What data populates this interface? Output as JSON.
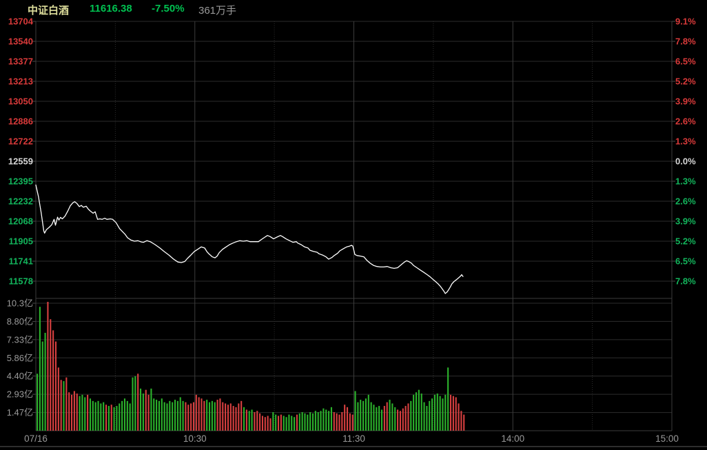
{
  "header": {
    "title": "中证白酒",
    "last": "11616.38",
    "change_pct": "-7.50%",
    "volume": "361万手"
  },
  "colors": {
    "up": "#d93a3a",
    "down": "#13b55c",
    "flat": "#d8d8d8",
    "bar_up": "#d84040",
    "bar_down": "#2cb32c",
    "line": "#ffffff",
    "axis_gray": "#9a9a9a",
    "title": "#dede9c",
    "value_green": "#00c050",
    "grid_h": "#2d2d2d",
    "grid_v_solid": "#3c3c3c",
    "grid_v_dotted": "#2e2e2e",
    "tick": "#4a4a4a",
    "bg": "#000000"
  },
  "chart_data": {
    "type": "line",
    "subtype": "intraday-price-with-volume-bars",
    "title": "中证白酒",
    "prev_close": 12559,
    "last_price": 11616.38,
    "change_pct": -7.5,
    "session_minutes": 240,
    "price_axis_top": 13704,
    "price_axis_bottom": 11578,
    "left_price_labels": [
      "13704",
      "13540",
      "13377",
      "13213",
      "13050",
      "12886",
      "12722",
      "12559",
      "12395",
      "12232",
      "12068",
      "11905",
      "11741",
      "11578"
    ],
    "left_price_classes": [
      "up",
      "up",
      "up",
      "up",
      "up",
      "up",
      "up",
      "flat",
      "down",
      "down",
      "down",
      "down",
      "down",
      "down"
    ],
    "right_pct_labels": [
      "9.1%",
      "7.8%",
      "6.5%",
      "5.2%",
      "3.9%",
      "2.6%",
      "1.3%",
      "0.0%",
      "1.3%",
      "2.6%",
      "3.9%",
      "5.2%",
      "6.5%",
      "7.8%"
    ],
    "volume_axis_labels": [
      "10.3亿",
      "8.80亿",
      "7.33亿",
      "5.86亿",
      "4.40亿",
      "2.93亿",
      "1.47亿"
    ],
    "volume_axis_max": 10.29,
    "x_ticks": [
      {
        "label": "07/16",
        "pos": 0.0
      },
      {
        "label": "10:30",
        "pos": 0.25
      },
      {
        "label": "11:30",
        "pos": 0.5
      },
      {
        "label": "14:00",
        "pos": 0.75
      },
      {
        "label": "15:00",
        "pos": 1.0
      }
    ],
    "v_gridlines_solid": [
      0.25,
      0.5,
      0.75
    ],
    "v_gridlines_dotted": [
      0.125,
      0.375,
      0.625,
      0.875
    ],
    "price_points": [
      [
        0,
        12365
      ],
      [
        1,
        12270
      ],
      [
        2,
        12140
      ],
      [
        3,
        11990
      ],
      [
        3.3,
        11971
      ],
      [
        4,
        12000
      ],
      [
        5,
        12018
      ],
      [
        6,
        12040
      ],
      [
        6.9,
        12084
      ],
      [
        7.4,
        12036
      ],
      [
        8.2,
        12102
      ],
      [
        8.7,
        12078
      ],
      [
        9.3,
        12100
      ],
      [
        10,
        12088
      ],
      [
        11,
        12110
      ],
      [
        12,
        12150
      ],
      [
        13,
        12195
      ],
      [
        14,
        12220
      ],
      [
        14.7,
        12228
      ],
      [
        15.5,
        12214
      ],
      [
        16.4,
        12188
      ],
      [
        17.2,
        12198
      ],
      [
        17.9,
        12183
      ],
      [
        19,
        12191
      ],
      [
        19.8,
        12168
      ],
      [
        20.5,
        12153
      ],
      [
        21.6,
        12134
      ],
      [
        22.4,
        12146
      ],
      [
        23.3,
        12084
      ],
      [
        24.2,
        12088
      ],
      [
        25,
        12084
      ],
      [
        26,
        12093
      ],
      [
        26.8,
        12084
      ],
      [
        28.1,
        12088
      ],
      [
        29,
        12084
      ],
      [
        30.3,
        12056
      ],
      [
        31.6,
        12008
      ],
      [
        32.4,
        11990
      ],
      [
        33.7,
        11961
      ],
      [
        34.6,
        11933
      ],
      [
        35.9,
        11914
      ],
      [
        37.2,
        11905
      ],
      [
        38.5,
        11909
      ],
      [
        39.8,
        11899
      ],
      [
        40.6,
        11896
      ],
      [
        41.9,
        11909
      ],
      [
        43.2,
        11901
      ],
      [
        45,
        11877
      ],
      [
        46.8,
        11849
      ],
      [
        48.4,
        11821
      ],
      [
        50.2,
        11792
      ],
      [
        52,
        11758
      ],
      [
        53.6,
        11735
      ],
      [
        54.9,
        11730
      ],
      [
        56.2,
        11739
      ],
      [
        57.2,
        11764
      ],
      [
        58.5,
        11792
      ],
      [
        59.8,
        11821
      ],
      [
        61.1,
        11839
      ],
      [
        62.4,
        11858
      ],
      [
        63.7,
        11849
      ],
      [
        64.5,
        11821
      ],
      [
        65.3,
        11802
      ],
      [
        66.6,
        11777
      ],
      [
        67.6,
        11769
      ],
      [
        68.4,
        11783
      ],
      [
        69.2,
        11811
      ],
      [
        70.5,
        11839
      ],
      [
        71.8,
        11858
      ],
      [
        73.1,
        11877
      ],
      [
        74.4,
        11890
      ],
      [
        75.7,
        11901
      ],
      [
        77,
        11909
      ],
      [
        78.3,
        11905
      ],
      [
        79.6,
        11909
      ],
      [
        80.9,
        11901
      ],
      [
        82.7,
        11901
      ],
      [
        84,
        11901
      ],
      [
        84.8,
        11914
      ],
      [
        86.1,
        11933
      ],
      [
        87.4,
        11952
      ],
      [
        88.4,
        11943
      ],
      [
        89.7,
        11924
      ],
      [
        91,
        11939
      ],
      [
        92.3,
        11952
      ],
      [
        93.1,
        11943
      ],
      [
        94.4,
        11924
      ],
      [
        95.7,
        11910
      ],
      [
        97,
        11896
      ],
      [
        98.3,
        11901
      ],
      [
        98.8,
        11890
      ],
      [
        100.1,
        11877
      ],
      [
        101.4,
        11858
      ],
      [
        102.7,
        11849
      ],
      [
        103.5,
        11830
      ],
      [
        104.8,
        11821
      ],
      [
        106.1,
        11815
      ],
      [
        106.9,
        11802
      ],
      [
        108.2,
        11792
      ],
      [
        109.5,
        11777
      ],
      [
        110.5,
        11758
      ],
      [
        111.8,
        11773
      ],
      [
        112.6,
        11788
      ],
      [
        113.9,
        11807
      ],
      [
        114.7,
        11826
      ],
      [
        115.7,
        11839
      ],
      [
        116.5,
        11849
      ],
      [
        117.3,
        11858
      ],
      [
        118.3,
        11864
      ],
      [
        119.1,
        11871
      ],
      [
        119.6,
        11865
      ],
      [
        120,
        11831
      ],
      [
        120.4,
        11796
      ],
      [
        121.2,
        11788
      ],
      [
        122.5,
        11783
      ],
      [
        123.8,
        11777
      ],
      [
        124.3,
        11764
      ],
      [
        125.1,
        11745
      ],
      [
        126.1,
        11726
      ],
      [
        127.4,
        11707
      ],
      [
        128.7,
        11698
      ],
      [
        130,
        11694
      ],
      [
        131.3,
        11694
      ],
      [
        132.6,
        11698
      ],
      [
        133.9,
        11688
      ],
      [
        135.2,
        11683
      ],
      [
        136.5,
        11688
      ],
      [
        137.3,
        11702
      ],
      [
        138.1,
        11717
      ],
      [
        139.1,
        11735
      ],
      [
        139.9,
        11745
      ],
      [
        140.7,
        11739
      ],
      [
        141.7,
        11726
      ],
      [
        142.5,
        11707
      ],
      [
        143.8,
        11688
      ],
      [
        145.1,
        11669
      ],
      [
        146.4,
        11650
      ],
      [
        147.7,
        11631
      ],
      [
        148.8,
        11613
      ],
      [
        149.8,
        11594
      ],
      [
        150.8,
        11575
      ],
      [
        151.8,
        11556
      ],
      [
        152.6,
        11537
      ],
      [
        153.4,
        11513
      ],
      [
        154,
        11495
      ],
      [
        154.5,
        11477
      ],
      [
        155.2,
        11490
      ],
      [
        155.8,
        11509
      ],
      [
        156.4,
        11531
      ],
      [
        157,
        11556
      ],
      [
        157.8,
        11575
      ],
      [
        158.6,
        11588
      ],
      [
        159.4,
        11603
      ],
      [
        160.2,
        11618
      ],
      [
        160.7,
        11631
      ],
      [
        161.2,
        11616.38
      ]
    ],
    "volumes": [
      4.6,
      10.0,
      7.2,
      7.9,
      10.4,
      9.0,
      8.1,
      7.2,
      5.1,
      4.1,
      4.0,
      4.3,
      3.1,
      2.9,
      3.2,
      3.0,
      2.8,
      2.9,
      2.7,
      2.9,
      2.6,
      2.4,
      2.3,
      2.4,
      2.2,
      2.3,
      2.1,
      2.0,
      2.1,
      1.9,
      2.0,
      2.2,
      2.4,
      2.6,
      2.4,
      2.2,
      4.3,
      4.4,
      4.6,
      3.4,
      3.0,
      3.3,
      2.9,
      3.4,
      2.6,
      2.5,
      2.4,
      2.6,
      2.3,
      2.2,
      2.4,
      2.3,
      2.5,
      2.4,
      2.7,
      2.4,
      2.3,
      2.1,
      2.2,
      2.3,
      2.9,
      2.7,
      2.6,
      2.4,
      2.5,
      2.3,
      2.4,
      2.3,
      2.5,
      2.6,
      2.3,
      2.2,
      2.1,
      2.2,
      2.0,
      1.9,
      2.2,
      2.4,
      1.9,
      1.7,
      1.6,
      1.7,
      1.5,
      1.6,
      1.4,
      1.2,
      1.1,
      1.2,
      1.0,
      1.5,
      1.3,
      1.2,
      1.3,
      1.2,
      1.1,
      1.3,
      1.2,
      1.1,
      1.3,
      1.4,
      1.5,
      1.4,
      1.3,
      1.5,
      1.4,
      1.6,
      1.5,
      1.6,
      1.8,
      1.7,
      1.6,
      1.9,
      1.5,
      1.4,
      1.3,
      1.5,
      2.1,
      1.9,
      1.4,
      1.3,
      3.2,
      2.3,
      2.5,
      2.4,
      2.6,
      2.9,
      2.3,
      2.1,
      1.9,
      2.0,
      1.7,
      2.0,
      2.3,
      2.5,
      2.2,
      1.9,
      1.7,
      1.6,
      1.8,
      2.0,
      2.2,
      2.4,
      2.9,
      3.1,
      3.3,
      3.0,
      2.3,
      2.0,
      2.4,
      2.6,
      2.9,
      3.0,
      2.8,
      2.6,
      2.9,
      5.1,
      2.9,
      2.8,
      2.7,
      2.2,
      1.6,
      1.3
    ]
  }
}
